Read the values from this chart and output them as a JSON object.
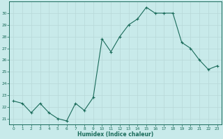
{
  "x": [
    0,
    1,
    2,
    3,
    4,
    5,
    6,
    7,
    8,
    9,
    10,
    11,
    12,
    13,
    14,
    15,
    16,
    17,
    18,
    19,
    20,
    21,
    22,
    23
  ],
  "y": [
    22.5,
    22.3,
    21.5,
    22.3,
    21.5,
    21.0,
    20.8,
    22.3,
    21.7,
    22.8,
    27.8,
    26.7,
    28.0,
    29.0,
    29.5,
    30.5,
    30.0,
    30.0,
    30.0,
    27.5,
    27.0,
    26.0,
    25.2,
    25.5
  ],
  "line_color": "#1a6b5a",
  "marker": "+",
  "marker_color": "#1a6b5a",
  "bg_color": "#c8eaea",
  "grid_color": "#b8d8d8",
  "tick_label_color": "#1a6b5a",
  "xlabel": "Humidex (Indice chaleur)",
  "xlabel_color": "#1a6b5a",
  "ylim": [
    20.5,
    31
  ],
  "xlim": [
    -0.5,
    23.5
  ],
  "yticks": [
    21,
    22,
    23,
    24,
    25,
    26,
    27,
    28,
    29,
    30
  ],
  "xticks": [
    0,
    1,
    2,
    3,
    4,
    5,
    6,
    7,
    8,
    9,
    10,
    11,
    12,
    13,
    14,
    15,
    16,
    17,
    18,
    19,
    20,
    21,
    22,
    23
  ]
}
